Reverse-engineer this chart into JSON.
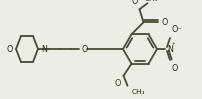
{
  "bg_color": "#eeede3",
  "line_color": "#4a4a38",
  "bond_lw": 1.3,
  "font_size": 5.8,
  "font_color": "#2a2a18",
  "figsize": [
    2.02,
    0.99
  ],
  "dpi": 100,
  "xlim": [
    0,
    202
  ],
  "ylim": [
    0,
    99
  ]
}
